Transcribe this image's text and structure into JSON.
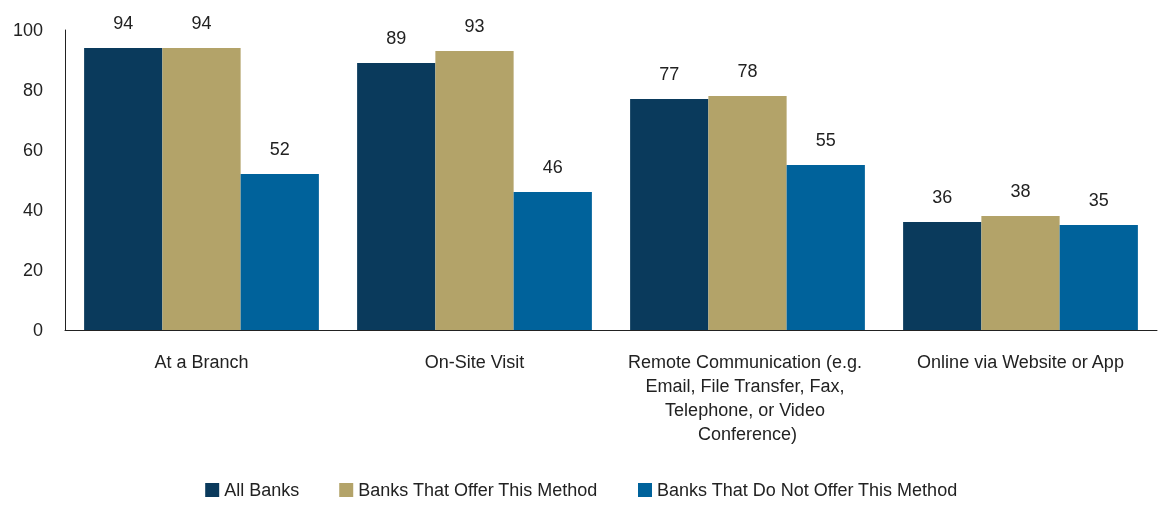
{
  "chart_data": {
    "type": "bar",
    "categories": [
      "At a Branch",
      "On-Site Visit",
      "Remote Communication (e.g. Email, File Transfer, Fax, Telephone, or Video Conference)",
      "Online via Website or App"
    ],
    "series": [
      {
        "name": "All Banks",
        "color": "#0a3a5c",
        "values": [
          94,
          89,
          77,
          36
        ]
      },
      {
        "name": "Banks That Offer This Method",
        "color": "#b3a369",
        "values": [
          94,
          93,
          78,
          38
        ]
      },
      {
        "name": "Banks That Do Not Offer This Method",
        "color": "#00629b",
        "values": [
          52,
          46,
          55,
          35
        ]
      }
    ],
    "ylim": [
      0,
      100
    ],
    "yticks": [
      0,
      20,
      40,
      60,
      80,
      100
    ],
    "grid": false,
    "legend": "bottom",
    "data_labels": true
  }
}
